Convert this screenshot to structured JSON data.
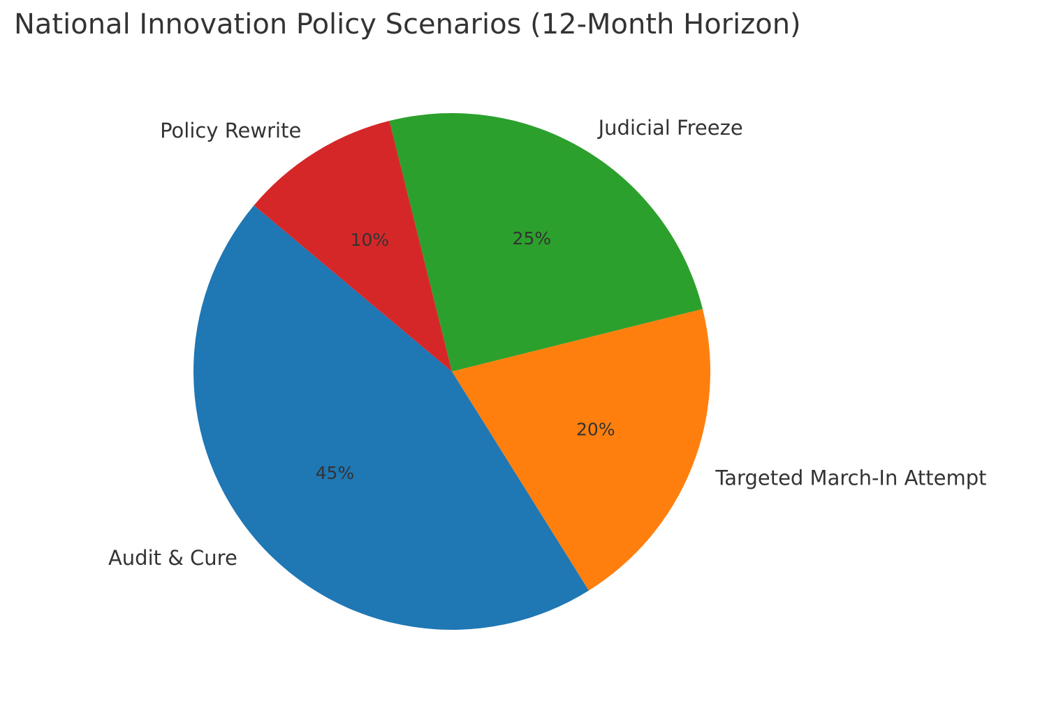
{
  "chart_data": {
    "type": "pie",
    "title": "National Innovation Policy Scenarios (12-Month Horizon)",
    "slices": [
      {
        "label": "Audit & Cure",
        "value": 45,
        "pct_label": "45%",
        "color": "#1f77b4"
      },
      {
        "label": "Targeted March-In Attempt",
        "value": 20,
        "pct_label": "20%",
        "color": "#ff7f0e"
      },
      {
        "label": "Judicial Freeze",
        "value": 25,
        "pct_label": "25%",
        "color": "#2ca02c"
      },
      {
        "label": "Policy Rewrite",
        "value": 10,
        "pct_label": "10%",
        "color": "#d62728"
      }
    ],
    "start_angle": 140,
    "direction": "counterclockwise",
    "legend": "none"
  }
}
